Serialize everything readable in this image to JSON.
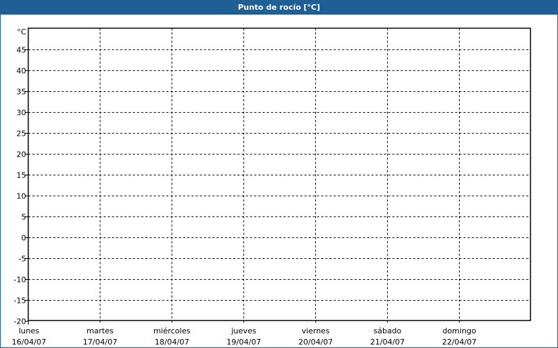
{
  "window": {
    "title": "Punto de rocío [°C]",
    "title_bar_color": "#1f5f96"
  },
  "chart_data": {
    "type": "line",
    "title": "Punto de rocío [°C]",
    "ylabel": "°C",
    "ylim": [
      -20,
      50
    ],
    "yticks": [
      45,
      40,
      35,
      30,
      25,
      20,
      15,
      10,
      5,
      0,
      -5,
      -10,
      -15,
      -20
    ],
    "grid": true,
    "categories": [
      {
        "day": "lunes",
        "date": "16/04/07"
      },
      {
        "day": "martes",
        "date": "17/04/07"
      },
      {
        "day": "miércoles",
        "date": "18/04/07"
      },
      {
        "day": "jueves",
        "date": "19/04/07"
      },
      {
        "day": "viernes",
        "date": "20/04/07"
      },
      {
        "day": "sábado",
        "date": "21/04/07"
      },
      {
        "day": "domingo",
        "date": "22/04/07"
      }
    ],
    "series": []
  }
}
